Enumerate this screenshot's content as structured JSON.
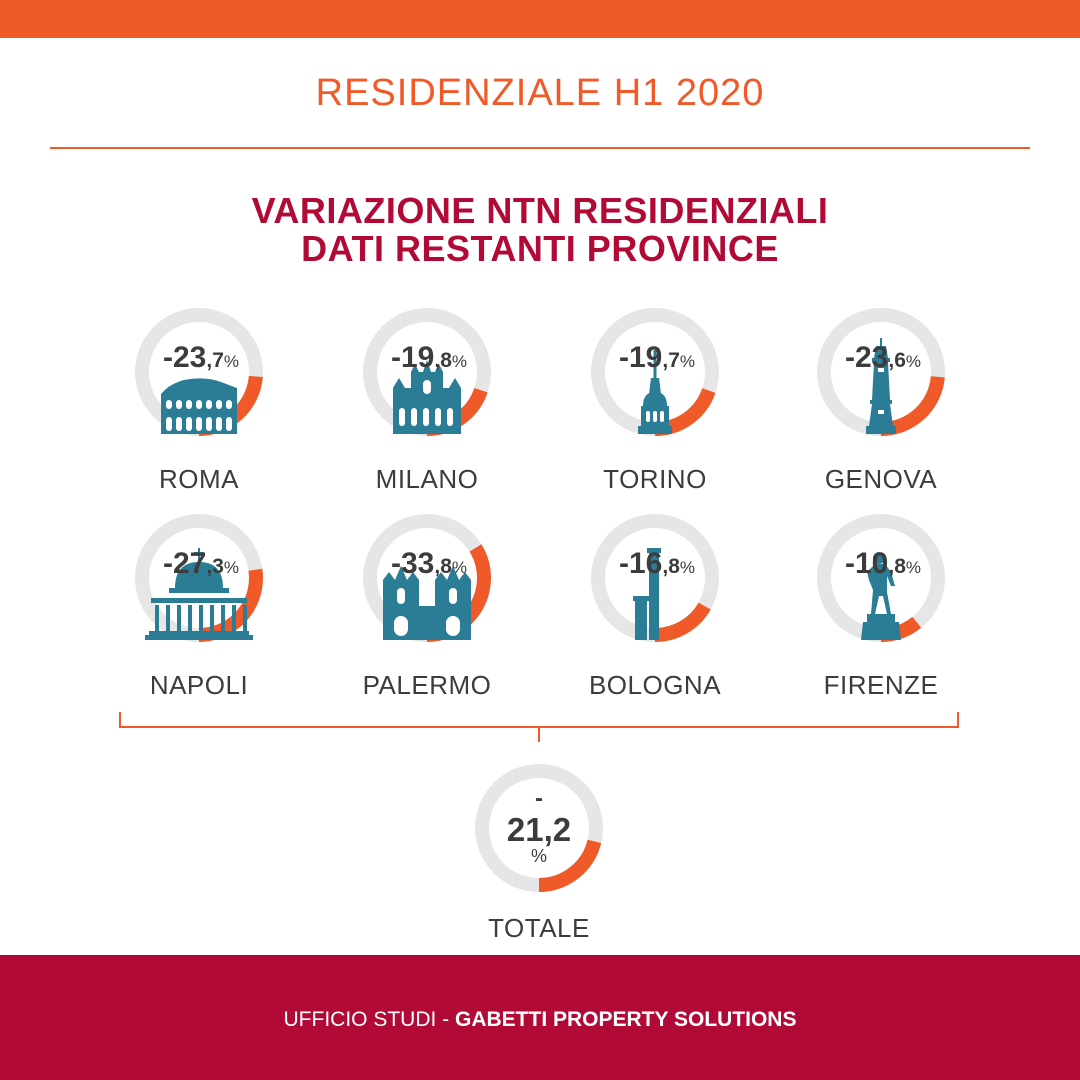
{
  "header": {
    "title": "RESIDENZIALE H1 2020"
  },
  "chart_title_lines": [
    "VARIAZIONE NTN RESIDENZIALI",
    "DATI RESTANTI PROVINCE"
  ],
  "colors": {
    "orange": "#f05a28",
    "crimson": "#b20a37",
    "ring_bg": "#e6e6e6",
    "icon": "#2a7d95",
    "text_dark": "#3c3c3c"
  },
  "chart_data": {
    "type": "donut",
    "title": "VARIAZIONE NTN RESIDENZIALI DATI RESTANTI PROVINCE",
    "cities": [
      {
        "name": "ROMA",
        "value": -23.7,
        "label_int": "-23",
        "label_dec": ",7",
        "unit": "%",
        "icon": "colosseum-icon"
      },
      {
        "name": "MILANO",
        "value": -19.8,
        "label_int": "-19",
        "label_dec": ",8",
        "unit": "%",
        "icon": "duomo-icon"
      },
      {
        "name": "TORINO",
        "value": -19.7,
        "label_int": "-19",
        "label_dec": ",7",
        "unit": "%",
        "icon": "mole-antonelliana-icon"
      },
      {
        "name": "GENOVA",
        "value": -23.6,
        "label_int": "-23",
        "label_dec": ",6",
        "unit": "%",
        "icon": "lanterna-icon"
      },
      {
        "name": "NAPOLI",
        "value": -27.3,
        "label_int": "-27",
        "label_dec": ",3",
        "unit": "%",
        "icon": "basilica-icon"
      },
      {
        "name": "PALERMO",
        "value": -33.8,
        "label_int": "-33",
        "label_dec": ",8",
        "unit": "%",
        "icon": "cathedral-icon"
      },
      {
        "name": "BOLOGNA",
        "value": -16.8,
        "label_int": "-16",
        "label_dec": ",8",
        "unit": "%",
        "icon": "two-towers-icon"
      },
      {
        "name": "FIRENZE",
        "value": -10.8,
        "label_int": "-10",
        "label_dec": ",8",
        "unit": "%",
        "icon": "david-statue-icon"
      }
    ],
    "total": {
      "name": "TOTALE",
      "value": -21.2,
      "label_sign": "-",
      "label_num": "21,2",
      "unit": "%"
    }
  },
  "footer": {
    "prefix": "UFFICIO STUDI - ",
    "bold": "GABETTI PROPERTY SOLUTIONS"
  }
}
